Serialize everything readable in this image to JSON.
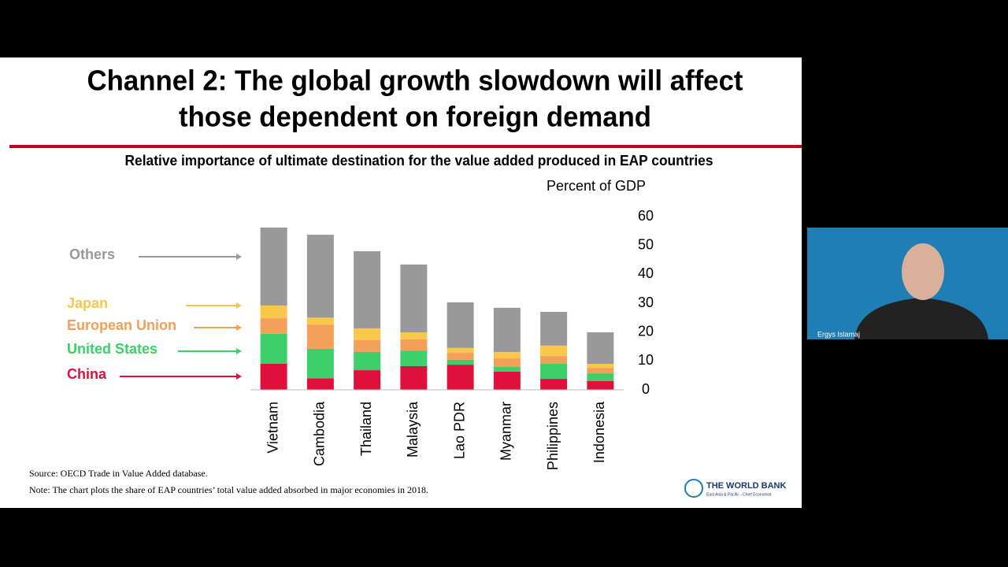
{
  "slide": {
    "title_lines": [
      "Channel 2: The global growth slowdown will affect",
      "those dependent on foreign demand"
    ],
    "source": "Source: OECD Trade in Value Added database.",
    "note": "Note: The chart plots the share of EAP countries’ total value added absorbed in major economies in 2018.",
    "logo": {
      "name": "THE WORLD BANK",
      "unit": "East Asia & Pacific - Chief Economist"
    }
  },
  "participant": {
    "name": "Ergys Islamaj"
  },
  "chart_data": {
    "type": "stacked-bar",
    "title": "Relative importance of ultimate destination for the value added produced in EAP countries",
    "y_label": "Percent of GDP",
    "categories": [
      "Vietnam",
      "Cambodia",
      "Thailand",
      "Malaysia",
      "Lao PDR",
      "Myanmar",
      "Philippines",
      "Indonesia"
    ],
    "series": [
      {
        "name": "China",
        "color": "#e0103c",
        "values": [
          9,
          4,
          6.8,
          8.2,
          8.7,
          6.3,
          3.8,
          3
        ]
      },
      {
        "name": "United States",
        "color": "#3ccf6a",
        "values": [
          10.4,
          10.2,
          6.3,
          5.4,
          1.7,
          1.6,
          5.2,
          2.7
        ]
      },
      {
        "name": "European Union",
        "color": "#f4a05a",
        "values": [
          5.4,
          8.4,
          4.1,
          3.9,
          2.4,
          3,
          2.7,
          1.9
        ]
      },
      {
        "name": "Japan",
        "color": "#f9c84a",
        "values": [
          4.4,
          2.4,
          4.1,
          2.4,
          1.7,
          2.2,
          3.6,
          1.4
        ]
      },
      {
        "name": "Others",
        "color": "#999999",
        "values": [
          27,
          28.7,
          26.7,
          23.5,
          15.8,
          15.3,
          11.7,
          10.9
        ]
      }
    ],
    "ylim": [
      0,
      60
    ],
    "yticks": [
      0,
      10,
      20,
      30,
      40,
      50,
      60
    ],
    "y_axis_side": "right",
    "grid": false
  }
}
